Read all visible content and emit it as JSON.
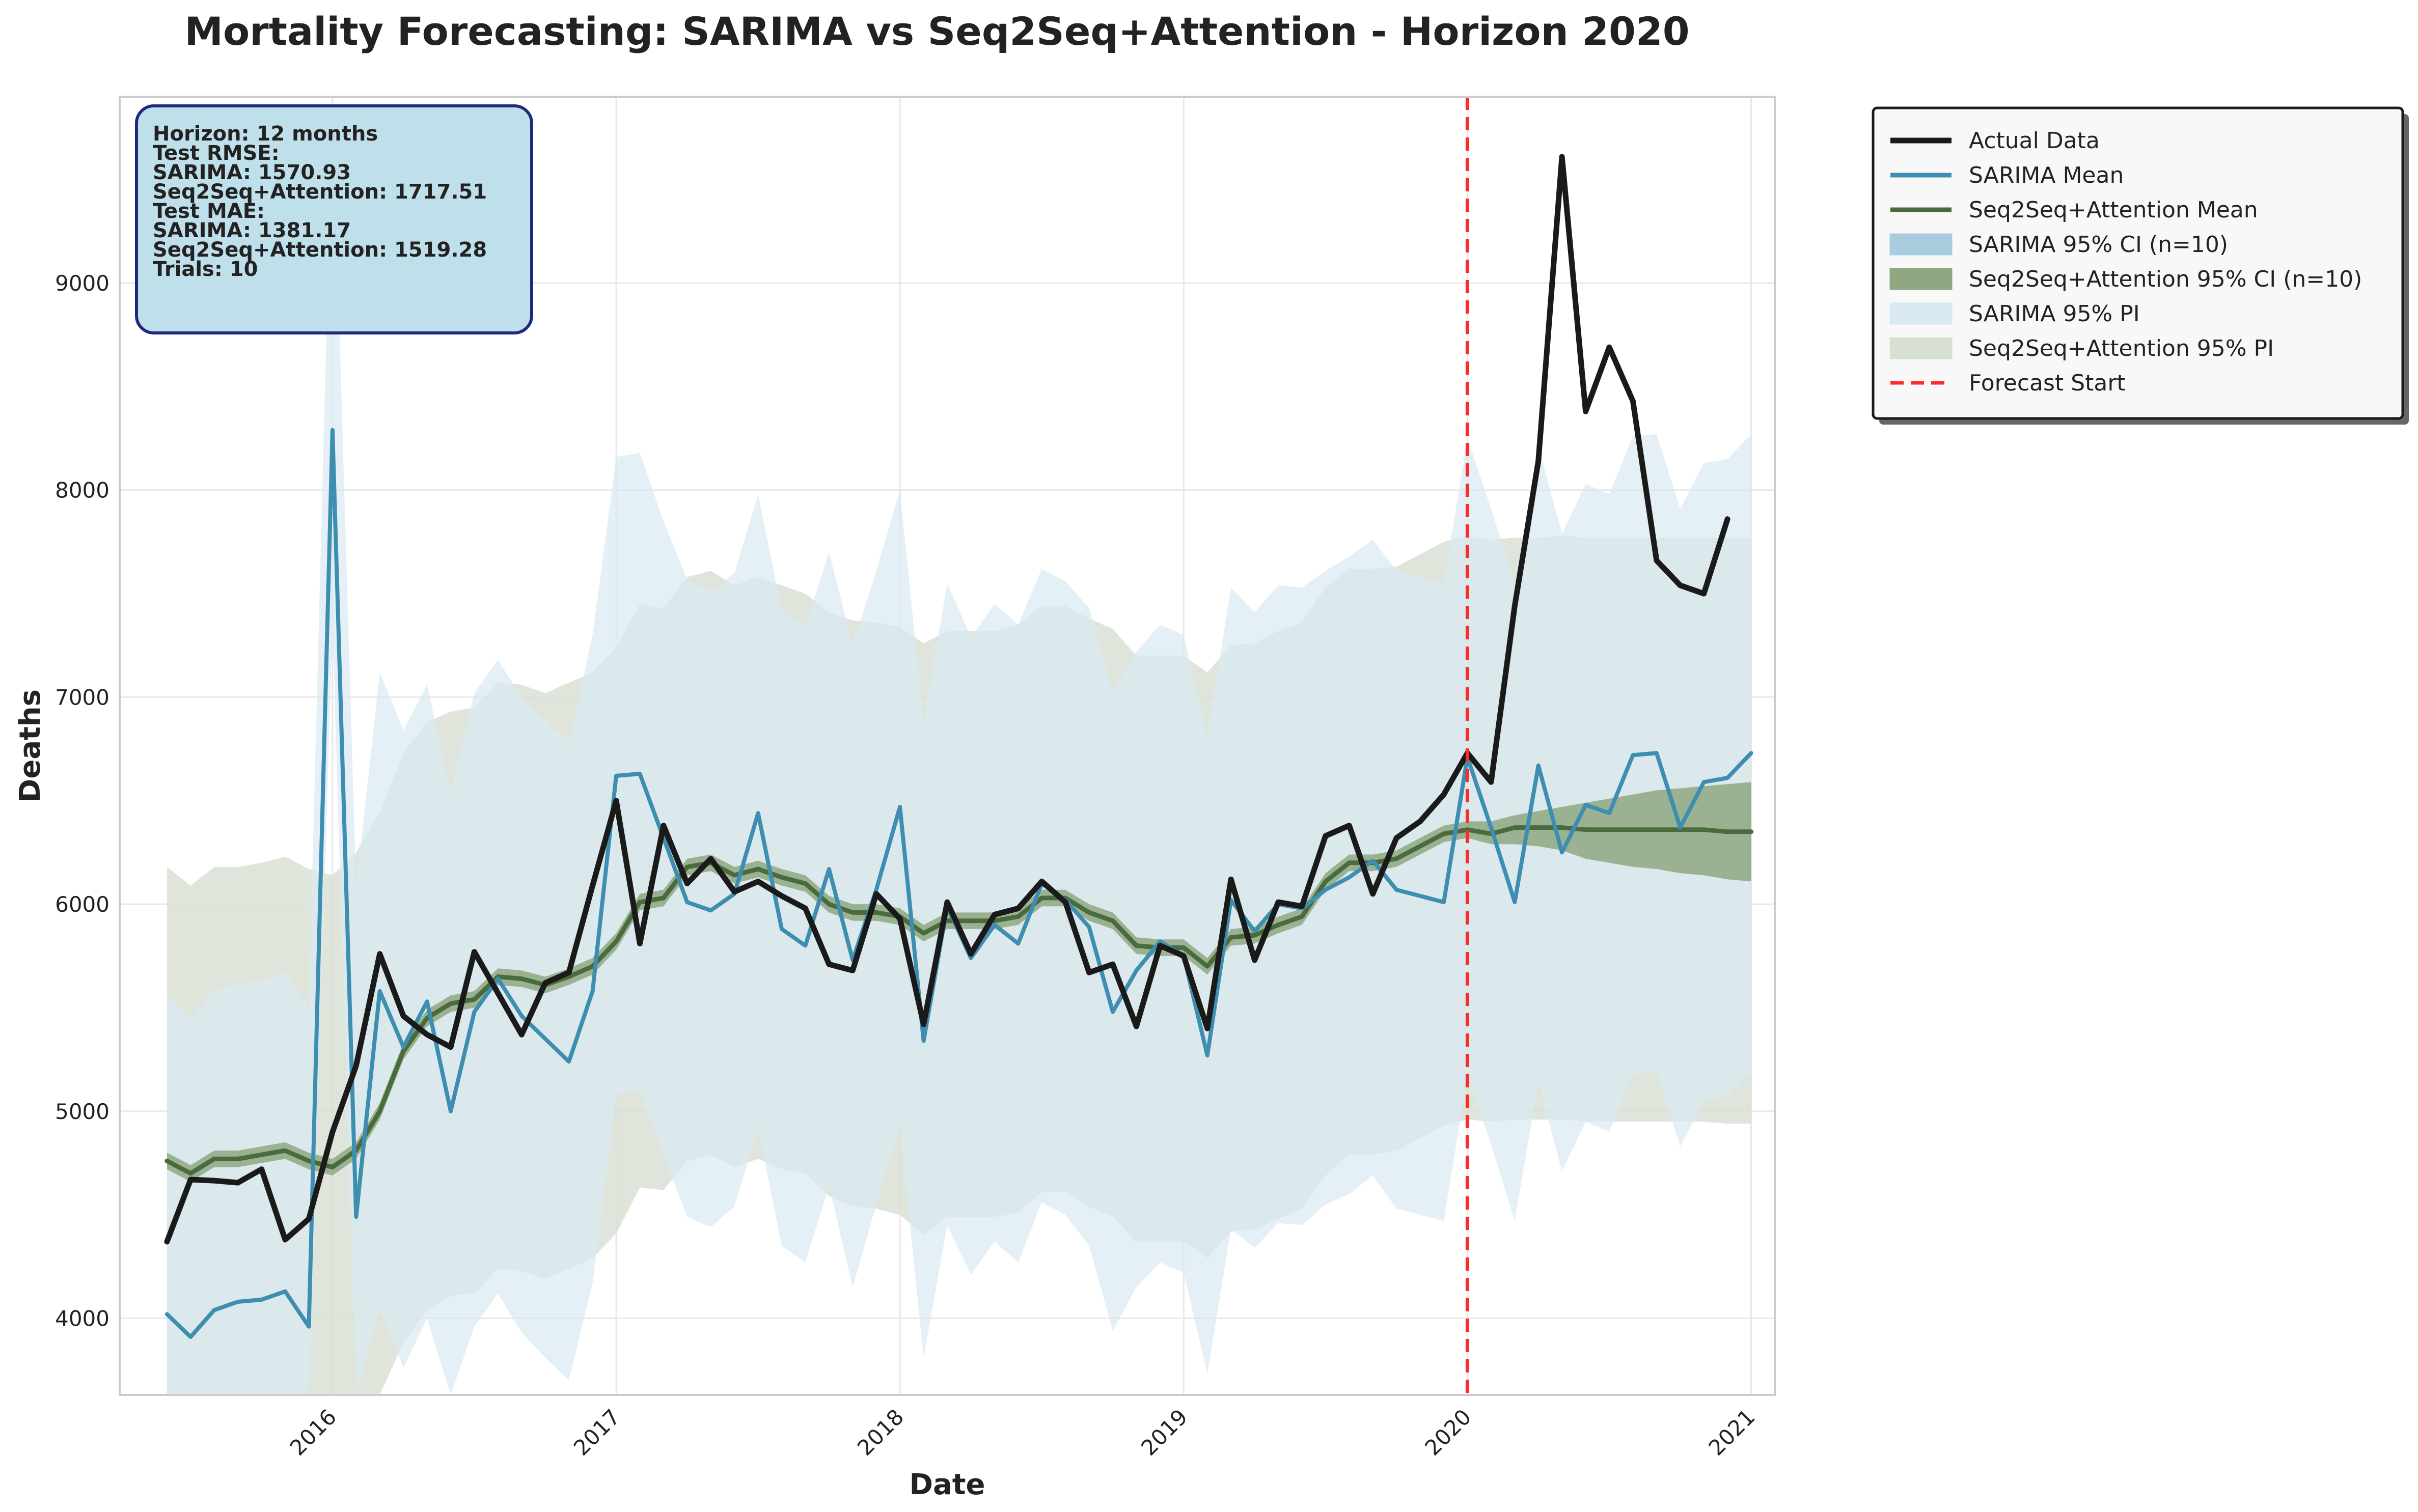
{
  "chart_data": {
    "type": "line",
    "title": "Mortality Forecasting: SARIMA vs Seq2Seq+Attention - Horizon 2020",
    "xlabel": "Date",
    "ylabel": "Deaths",
    "x_start": "2015-06",
    "x_ticks": [
      "2016",
      "2017",
      "2018",
      "2019",
      "2020",
      "2021"
    ],
    "y_ticks": [
      "4000",
      "5000",
      "6000",
      "7000",
      "8000",
      "9000"
    ],
    "xlim": [
      "2015-04",
      "2021-02"
    ],
    "ylim": [
      3630,
      9900
    ],
    "grid": true,
    "legend_position": "outside-top-right",
    "forecast_start": "2020-01",
    "stats_box": [
      "Horizon: 12 months",
      "Test RMSE:",
      "  SARIMA: 1570.93",
      "  Seq2Seq+Attention: 1717.51",
      "Test MAE:",
      "  SARIMA: 1381.17",
      "  Seq2Seq+Attention: 1519.28",
      "Trials: 10"
    ],
    "colors": {
      "actual": "#1a1a1a",
      "sarima": "#3d8eb0",
      "seq2seq": "#4a6b3d",
      "sarima_ci": "#a8cde0",
      "seq2seq_ci": "#8fa882",
      "sarima_pi": "#d9e9f2",
      "seq2seq_pi": "#d8dfd3",
      "forecast_start": "#ff2a2a",
      "stats_box_fill": "#bfe0eb",
      "stats_box_border": "#1f2a7a"
    },
    "legend": [
      {
        "label": "Actual Data",
        "kind": "line",
        "key": "actual"
      },
      {
        "label": "SARIMA Mean",
        "kind": "line",
        "key": "sarima"
      },
      {
        "label": "Seq2Seq+Attention Mean",
        "kind": "line",
        "key": "seq2seq"
      },
      {
        "label": "SARIMA 95% CI (n=10)",
        "kind": "patch",
        "key": "sarima_ci"
      },
      {
        "label": "Seq2Seq+Attention 95% CI (n=10)",
        "kind": "patch",
        "key": "seq2seq_ci"
      },
      {
        "label": "SARIMA 95% PI",
        "kind": "patch",
        "key": "sarima_pi"
      },
      {
        "label": "Seq2Seq+Attention 95% PI",
        "kind": "patch",
        "key": "seq2seq_pi"
      },
      {
        "label": "Forecast Start",
        "kind": "dash",
        "key": "forecast_start"
      }
    ],
    "actual": [
      4370,
      4670,
      4665,
      4655,
      4720,
      4380,
      4480,
      4900,
      5220,
      5760,
      5460,
      5370,
      5310,
      5770,
      5570,
      5370,
      5620,
      5670,
      6090,
      6500,
      5810,
      6380,
      6100,
      6220,
      6060,
      6110,
      6040,
      5980,
      5710,
      5680,
      6050,
      5930,
      5420,
      6010,
      5760,
      5950,
      5980,
      6110,
      6010,
      5670,
      5710,
      5410,
      5800,
      5750,
      5400,
      6120,
      5730,
      6010,
      5990,
      6330,
      6380,
      6050,
      6320,
      6400,
      6530,
      6730,
      6590,
      7440,
      8140,
      9610,
      8380,
      8690,
      8430,
      7660,
      7540,
      7500,
      7860
    ],
    "sarima_mean": [
      4020,
      3910,
      4040,
      4080,
      4090,
      4130,
      3960,
      8290,
      4490,
      5580,
      5310,
      5530,
      5000,
      5480,
      5640,
      5460,
      5350,
      5240,
      5580,
      6620,
      6630,
      6320,
      6010,
      5970,
      6050,
      6440,
      5880,
      5800,
      6170,
      5730,
      6070,
      6470,
      5340,
      5990,
      5740,
      5900,
      5810,
      6100,
      6020,
      5890,
      5480,
      5680,
      5820,
      5750,
      5270,
      6020,
      5870,
      6000,
      5980,
      6070,
      6130,
      6210,
      6070,
      6040,
      6010,
      6710,
      6370,
      6010,
      6670,
      6250,
      6480,
      6440,
      6720,
      6730,
      6370,
      6590,
      6610,
      6730
    ],
    "sarima_ci": [
      [
        4010,
        4030
      ],
      [
        3900,
        3920
      ],
      [
        4030,
        4050
      ],
      [
        4070,
        4090
      ],
      [
        4080,
        4100
      ],
      [
        4120,
        4140
      ],
      [
        3950,
        3970
      ],
      [
        8270,
        8310
      ],
      [
        4480,
        4500
      ],
      [
        5570,
        5590
      ],
      [
        5300,
        5320
      ],
      [
        5520,
        5540
      ],
      [
        4990,
        5010
      ],
      [
        5470,
        5490
      ],
      [
        5630,
        5650
      ],
      [
        5450,
        5470
      ],
      [
        5340,
        5360
      ],
      [
        5230,
        5250
      ],
      [
        5570,
        5590
      ],
      [
        6610,
        6630
      ],
      [
        6620,
        6640
      ],
      [
        6310,
        6330
      ],
      [
        6000,
        6020
      ],
      [
        5960,
        5980
      ],
      [
        6040,
        6060
      ],
      [
        6430,
        6450
      ],
      [
        5870,
        5890
      ],
      [
        5790,
        5810
      ],
      [
        6160,
        6180
      ],
      [
        5720,
        5740
      ],
      [
        6060,
        6080
      ],
      [
        6460,
        6480
      ],
      [
        5330,
        5350
      ],
      [
        5980,
        6000
      ],
      [
        5730,
        5750
      ],
      [
        5890,
        5910
      ],
      [
        5800,
        5820
      ],
      [
        6090,
        6110
      ],
      [
        6010,
        6030
      ],
      [
        5880,
        5900
      ],
      [
        5470,
        5490
      ],
      [
        5670,
        5690
      ],
      [
        5810,
        5830
      ],
      [
        5740,
        5760
      ],
      [
        5260,
        5280
      ],
      [
        6010,
        6030
      ],
      [
        5860,
        5880
      ],
      [
        5990,
        6010
      ],
      [
        5970,
        5990
      ],
      [
        6060,
        6080
      ],
      [
        6120,
        6140
      ],
      [
        6200,
        6220
      ],
      [
        6060,
        6080
      ],
      [
        6030,
        6050
      ],
      [
        6000,
        6020
      ],
      [
        6700,
        6720
      ],
      [
        6360,
        6380
      ],
      [
        6000,
        6020
      ],
      [
        6660,
        6680
      ],
      [
        6240,
        6260
      ],
      [
        6470,
        6490
      ],
      [
        6430,
        6450
      ],
      [
        6710,
        6730
      ],
      [
        6720,
        6740
      ],
      [
        6360,
        6380
      ],
      [
        6580,
        6600
      ],
      [
        6600,
        6620
      ],
      [
        6720,
        6740
      ]
    ],
    "sarima_pi": [
      [
        3630,
        5560
      ],
      [
        3630,
        5450
      ],
      [
        3630,
        5580
      ],
      [
        3630,
        5620
      ],
      [
        3630,
        5630
      ],
      [
        3630,
        5670
      ],
      [
        3630,
        5500
      ],
      [
        7340,
        9900
      ],
      [
        3630,
        6080
      ],
      [
        4050,
        7120
      ],
      [
        3760,
        6840
      ],
      [
        4000,
        7060
      ],
      [
        3630,
        6540
      ],
      [
        3960,
        7020
      ],
      [
        4120,
        7180
      ],
      [
        3930,
        7000
      ],
      [
        3810,
        6890
      ],
      [
        3700,
        6780
      ],
      [
        4170,
        7300
      ],
      [
        5080,
        8160
      ],
      [
        5100,
        8180
      ],
      [
        4790,
        7850
      ],
      [
        4490,
        7570
      ],
      [
        4440,
        7510
      ],
      [
        4540,
        7600
      ],
      [
        4920,
        7980
      ],
      [
        4350,
        7420
      ],
      [
        4270,
        7340
      ],
      [
        4640,
        7700
      ],
      [
        4150,
        7250
      ],
      [
        4550,
        7610
      ],
      [
        4930,
        8000
      ],
      [
        3810,
        6880
      ],
      [
        4450,
        7550
      ],
      [
        4210,
        7290
      ],
      [
        4370,
        7450
      ],
      [
        4270,
        7350
      ],
      [
        4560,
        7620
      ],
      [
        4500,
        7560
      ],
      [
        4350,
        7430
      ],
      [
        3940,
        7020
      ],
      [
        4150,
        7220
      ],
      [
        4270,
        7350
      ],
      [
        4220,
        7300
      ],
      [
        3730,
        6810
      ],
      [
        4430,
        7530
      ],
      [
        4340,
        7410
      ],
      [
        4460,
        7540
      ],
      [
        4450,
        7530
      ],
      [
        4550,
        7610
      ],
      [
        4600,
        7680
      ],
      [
        4690,
        7760
      ],
      [
        4530,
        7610
      ],
      [
        4500,
        7580
      ],
      [
        4470,
        7550
      ],
      [
        5170,
        8250
      ],
      [
        4840,
        7910
      ],
      [
        4470,
        7550
      ],
      [
        5140,
        8210
      ],
      [
        4710,
        7790
      ],
      [
        4950,
        8030
      ],
      [
        4900,
        7980
      ],
      [
        5180,
        8260
      ],
      [
        5190,
        8270
      ],
      [
        4830,
        7910
      ],
      [
        5050,
        8130
      ],
      [
        5070,
        8150
      ],
      [
        5190,
        8270
      ]
    ],
    "seq2seq_mean": [
      4760,
      4700,
      4770,
      4770,
      4790,
      4810,
      4760,
      4730,
      4810,
      5000,
      5290,
      5450,
      5520,
      5540,
      5650,
      5640,
      5610,
      5650,
      5700,
      5820,
      6010,
      6030,
      6180,
      6200,
      6140,
      6170,
      6130,
      6100,
      6000,
      5960,
      5960,
      5940,
      5860,
      5920,
      5920,
      5920,
      5940,
      6030,
      6030,
      5960,
      5920,
      5800,
      5790,
      5790,
      5700,
      5840,
      5850,
      5900,
      5940,
      6110,
      6200,
      6200,
      6220,
      6280,
      6340,
      6360,
      6340,
      6370,
      6370,
      6370,
      6360,
      6360,
      6360,
      6360,
      6360,
      6360,
      6350,
      6350
    ],
    "seq2seq_ci": [
      [
        4720,
        4800
      ],
      [
        4660,
        4740
      ],
      [
        4730,
        4810
      ],
      [
        4730,
        4810
      ],
      [
        4750,
        4830
      ],
      [
        4770,
        4850
      ],
      [
        4720,
        4800
      ],
      [
        4690,
        4770
      ],
      [
        4770,
        4850
      ],
      [
        4960,
        5040
      ],
      [
        5250,
        5330
      ],
      [
        5410,
        5490
      ],
      [
        5480,
        5560
      ],
      [
        5500,
        5580
      ],
      [
        5610,
        5690
      ],
      [
        5600,
        5680
      ],
      [
        5570,
        5650
      ],
      [
        5610,
        5690
      ],
      [
        5660,
        5740
      ],
      [
        5780,
        5860
      ],
      [
        5970,
        6050
      ],
      [
        5990,
        6070
      ],
      [
        6140,
        6220
      ],
      [
        6160,
        6240
      ],
      [
        6100,
        6180
      ],
      [
        6130,
        6210
      ],
      [
        6090,
        6170
      ],
      [
        6060,
        6140
      ],
      [
        5960,
        6040
      ],
      [
        5920,
        6000
      ],
      [
        5920,
        6000
      ],
      [
        5900,
        5980
      ],
      [
        5820,
        5900
      ],
      [
        5880,
        5960
      ],
      [
        5880,
        5960
      ],
      [
        5880,
        5960
      ],
      [
        5900,
        5980
      ],
      [
        5990,
        6070
      ],
      [
        5990,
        6070
      ],
      [
        5920,
        6000
      ],
      [
        5880,
        5960
      ],
      [
        5760,
        5840
      ],
      [
        5750,
        5830
      ],
      [
        5750,
        5830
      ],
      [
        5660,
        5740
      ],
      [
        5800,
        5880
      ],
      [
        5810,
        5890
      ],
      [
        5860,
        5940
      ],
      [
        5900,
        5980
      ],
      [
        6070,
        6150
      ],
      [
        6160,
        6240
      ],
      [
        6160,
        6240
      ],
      [
        6180,
        6260
      ],
      [
        6240,
        6320
      ],
      [
        6300,
        6380
      ],
      [
        6320,
        6400
      ],
      [
        6290,
        6400
      ],
      [
        6290,
        6430
      ],
      [
        6280,
        6450
      ],
      [
        6260,
        6470
      ],
      [
        6220,
        6490
      ],
      [
        6200,
        6510
      ],
      [
        6180,
        6530
      ],
      [
        6170,
        6550
      ],
      [
        6150,
        6560
      ],
      [
        6140,
        6570
      ],
      [
        6120,
        6580
      ],
      [
        6110,
        6590
      ]
    ],
    "seq2seq_pi": [
      [
        3630,
        6180
      ],
      [
        3630,
        6090
      ],
      [
        3630,
        6180
      ],
      [
        3630,
        6180
      ],
      [
        3630,
        6200
      ],
      [
        3630,
        6230
      ],
      [
        3630,
        6170
      ],
      [
        3630,
        6140
      ],
      [
        3630,
        6250
      ],
      [
        3630,
        6440
      ],
      [
        3880,
        6730
      ],
      [
        4040,
        6880
      ],
      [
        4110,
        6930
      ],
      [
        4120,
        6950
      ],
      [
        4240,
        7070
      ],
      [
        4230,
        7060
      ],
      [
        4190,
        7020
      ],
      [
        4240,
        7070
      ],
      [
        4290,
        7120
      ],
      [
        4410,
        7240
      ],
      [
        4630,
        7450
      ],
      [
        4620,
        7430
      ],
      [
        4760,
        7580
      ],
      [
        4790,
        7610
      ],
      [
        4730,
        7540
      ],
      [
        4770,
        7580
      ],
      [
        4720,
        7540
      ],
      [
        4700,
        7500
      ],
      [
        4590,
        7410
      ],
      [
        4540,
        7370
      ],
      [
        4530,
        7360
      ],
      [
        4500,
        7340
      ],
      [
        4400,
        7260
      ],
      [
        4490,
        7320
      ],
      [
        4490,
        7320
      ],
      [
        4490,
        7320
      ],
      [
        4510,
        7350
      ],
      [
        4610,
        7440
      ],
      [
        4610,
        7440
      ],
      [
        4540,
        7380
      ],
      [
        4490,
        7330
      ],
      [
        4370,
        7200
      ],
      [
        4370,
        7200
      ],
      [
        4370,
        7200
      ],
      [
        4290,
        7120
      ],
      [
        4420,
        7250
      ],
      [
        4430,
        7260
      ],
      [
        4480,
        7320
      ],
      [
        4530,
        7360
      ],
      [
        4690,
        7530
      ],
      [
        4790,
        7620
      ],
      [
        4790,
        7620
      ],
      [
        4810,
        7630
      ],
      [
        4870,
        7690
      ],
      [
        4930,
        7750
      ],
      [
        4960,
        7780
      ],
      [
        4950,
        7760
      ],
      [
        4960,
        7770
      ],
      [
        4960,
        7770
      ],
      [
        4960,
        7780
      ],
      [
        4950,
        7770
      ],
      [
        4950,
        7770
      ],
      [
        4950,
        7770
      ],
      [
        4950,
        7770
      ],
      [
        4950,
        7770
      ],
      [
        4950,
        7770
      ],
      [
        4940,
        7770
      ],
      [
        4940,
        7770
      ]
    ]
  }
}
